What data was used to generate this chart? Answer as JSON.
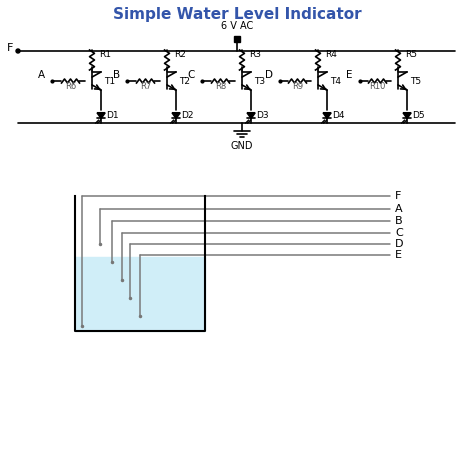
{
  "title": "Simple Water Level Indicator",
  "title_color": "#3355aa",
  "title_fontsize": 11,
  "bg_color": "#ffffff",
  "line_color": "#000000",
  "text_color": "#000000",
  "component_color": "#000000",
  "water_color": "#d0eef8",
  "wire_color": "#555555",
  "probe_labels": [
    "F",
    "A",
    "B",
    "C",
    "D",
    "E"
  ],
  "transistor_labels": [
    "T1",
    "T2",
    "T3",
    "T4",
    "T5"
  ],
  "diode_labels": [
    "D1",
    "D2",
    "D3",
    "D4",
    "D5"
  ],
  "r_top_labels": [
    "R1",
    "R2",
    "R3",
    "R4",
    "R5"
  ],
  "r_base_labels": [
    "R6",
    "R7",
    "R8",
    "R9",
    "R10"
  ],
  "node_labels": [
    "A",
    "B",
    "C",
    "D",
    "E"
  ],
  "power_label": "6 V AC",
  "ground_label": "GND",
  "f_label": "F"
}
